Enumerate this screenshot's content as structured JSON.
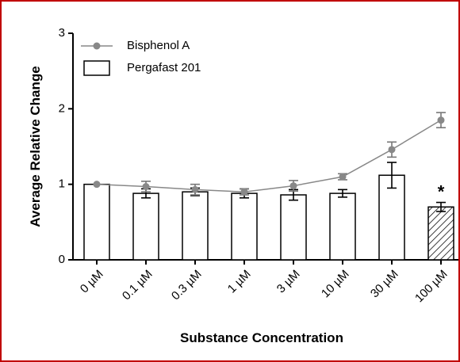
{
  "chart_data": {
    "type": "bar",
    "y_label": "Average Relative Change",
    "x_label": "Substance Concentration",
    "categories": [
      "0 µM",
      "0.1 µM",
      "0.3 µM",
      "1 µM",
      "3 µM",
      "10 µM",
      "30 µM",
      "100 µM"
    ],
    "series": [
      {
        "name": "Pergafast 201",
        "type": "bar",
        "color": "#ffffff",
        "values": [
          1.0,
          0.88,
          0.9,
          0.88,
          0.86,
          0.88,
          1.12,
          0.7
        ],
        "errors": [
          null,
          0.06,
          0.05,
          0.06,
          0.07,
          0.05,
          0.17,
          0.06
        ],
        "hatched": [
          false,
          false,
          false,
          false,
          false,
          false,
          false,
          true
        ]
      },
      {
        "name": "Bisphenol A",
        "type": "line",
        "color": "#888888",
        "values": [
          1.0,
          0.97,
          0.93,
          0.9,
          0.98,
          1.1,
          1.46,
          1.85
        ],
        "errors": [
          null,
          0.07,
          0.07,
          0.04,
          0.07,
          0.04,
          0.1,
          0.1
        ]
      }
    ],
    "annotations": [
      {
        "text": "*",
        "category": 7
      }
    ],
    "ylim": [
      0,
      3
    ],
    "yticks": [
      0,
      1,
      2,
      3
    ],
    "legend": "upper left"
  }
}
